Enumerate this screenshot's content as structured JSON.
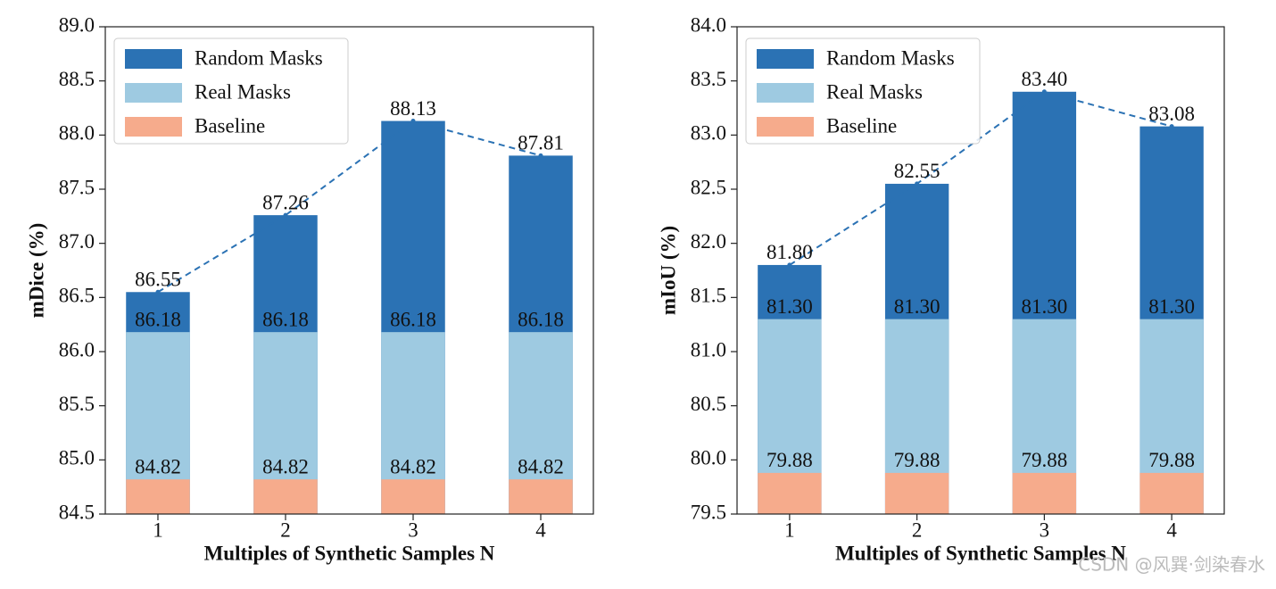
{
  "chart_data": [
    {
      "type": "bar",
      "xlabel": "Multiples of Synthetic Samples N",
      "ylabel": "mDice (%)",
      "categories": [
        "1",
        "2",
        "3",
        "4"
      ],
      "series": [
        {
          "name": "Random Masks",
          "color": "#2b72b4",
          "values": [
            86.55,
            87.26,
            88.13,
            87.81
          ],
          "value_labels": [
            "86.55",
            "87.26",
            "88.13",
            "87.81"
          ]
        },
        {
          "name": "Real Masks",
          "color": "#9ecae1",
          "values": [
            86.18,
            86.18,
            86.18,
            86.18
          ],
          "value_labels": [
            "86.18",
            "86.18",
            "86.18",
            "86.18"
          ]
        },
        {
          "name": "Baseline",
          "color": "#f6ab8c",
          "values": [
            84.82,
            84.82,
            84.82,
            84.82
          ],
          "value_labels": [
            "84.82",
            "84.82",
            "84.82",
            "84.82"
          ]
        }
      ],
      "ylim": [
        84.5,
        89.0
      ],
      "yticks": [
        84.5,
        {
          "value": 85,
          "label": "85.0"
        },
        85.5,
        {
          "value": 86,
          "label": "86.0"
        },
        86.5,
        {
          "value": 87,
          "label": "87.0"
        },
        87.5,
        {
          "value": 88,
          "label": "88.0"
        },
        88.5,
        {
          "value": 89,
          "label": "89.0"
        }
      ],
      "legend": "upper left"
    },
    {
      "type": "bar",
      "xlabel": "Multiples of Synthetic Samples N",
      "ylabel": "mIoU (%)",
      "categories": [
        "1",
        "2",
        "3",
        "4"
      ],
      "series": [
        {
          "name": "Random Masks",
          "color": "#2b72b4",
          "values": [
            81.8,
            82.55,
            83.4,
            83.08
          ],
          "value_labels": [
            "81.80",
            "82.55",
            "83.40",
            "83.08"
          ]
        },
        {
          "name": "Real Masks",
          "color": "#9ecae1",
          "values": [
            81.3,
            81.3,
            81.3,
            81.3
          ],
          "value_labels": [
            "81.30",
            "81.30",
            "81.30",
            "81.30"
          ]
        },
        {
          "name": "Baseline",
          "color": "#f6ab8c",
          "values": [
            79.88,
            79.88,
            79.88,
            79.88
          ],
          "value_labels": [
            "79.88",
            "79.88",
            "79.88",
            "79.88"
          ]
        }
      ],
      "ylim": [
        79.5,
        84.0
      ],
      "yticks": [
        79.5,
        {
          "value": 80,
          "label": "80.0"
        },
        80.5,
        {
          "value": 81,
          "label": "81.0"
        },
        81.5,
        {
          "value": 82,
          "label": "82.0"
        },
        82.5,
        {
          "value": 83,
          "label": "83.0"
        },
        83.5,
        {
          "value": 84,
          "label": "84.0"
        }
      ],
      "legend": "upper left"
    }
  ],
  "watermark": "CSDN @风巽·剑染春水"
}
